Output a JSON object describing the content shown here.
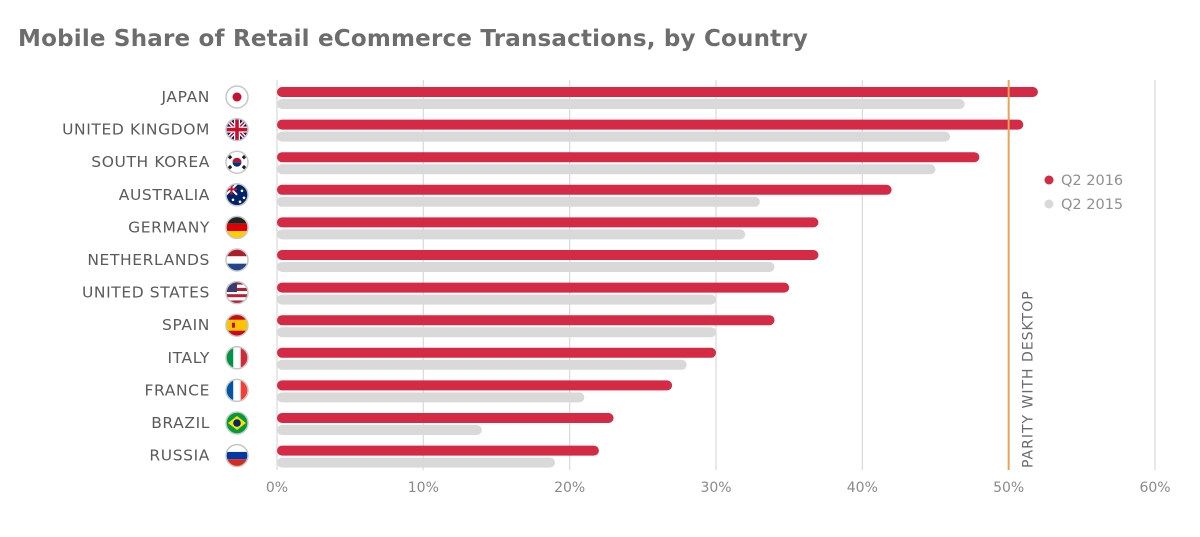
{
  "chart_data": {
    "type": "bar",
    "orientation": "horizontal",
    "title": "Mobile Share of Retail eCommerce Transactions, by Country",
    "categories": [
      "JAPAN",
      "UNITED KINGDOM",
      "SOUTH KOREA",
      "AUSTRALIA",
      "GERMANY",
      "NETHERLANDS",
      "UNITED STATES",
      "SPAIN",
      "ITALY",
      "FRANCE",
      "BRAZIL",
      "RUSSIA"
    ],
    "flags": [
      "japan-flag-icon",
      "uk-flag-icon",
      "south-korea-flag-icon",
      "australia-flag-icon",
      "germany-flag-icon",
      "netherlands-flag-icon",
      "usa-flag-icon",
      "spain-flag-icon",
      "italy-flag-icon",
      "france-flag-icon",
      "brazil-flag-icon",
      "russia-flag-icon"
    ],
    "series": [
      {
        "name": "Q2 2016",
        "color": "#d42a45",
        "values": [
          52,
          51,
          48,
          42,
          37,
          37,
          35,
          34,
          30,
          27,
          23,
          22
        ]
      },
      {
        "name": "Q2 2015",
        "color": "#d9d9d9",
        "values": [
          47,
          46,
          45,
          33,
          32,
          34,
          30,
          30,
          28,
          21,
          14,
          19
        ]
      }
    ],
    "xlim": [
      0,
      60
    ],
    "xticks": [
      "0%",
      "10%",
      "20%",
      "30%",
      "40%",
      "50%",
      "60%"
    ],
    "grid": true,
    "legend_position": "right",
    "reference_line": {
      "value": 50,
      "label": "PARITY WITH DESKTOP",
      "color": "#e8a25a"
    }
  }
}
